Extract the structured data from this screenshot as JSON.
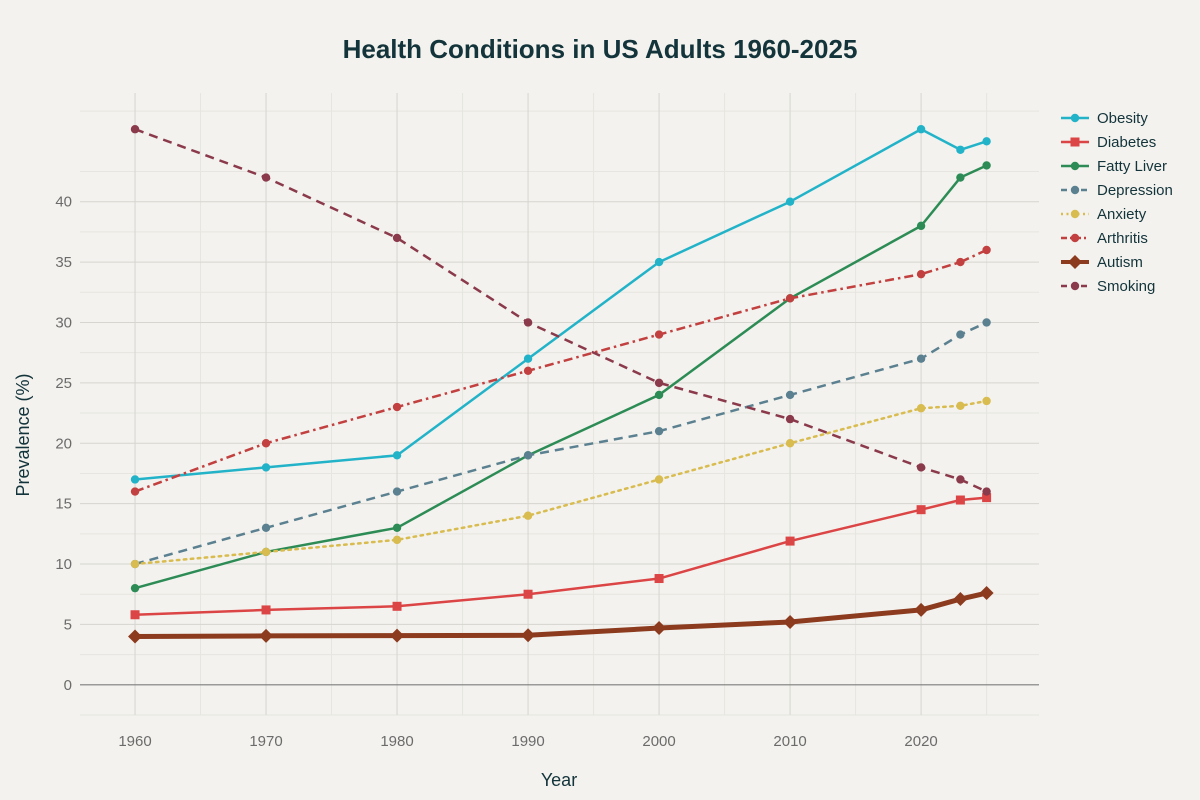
{
  "chart_data": {
    "type": "line",
    "title": "Health Conditions in US Adults 1960-2025",
    "xlabel": "Year",
    "ylabel": "Prevalence (%)",
    "x": [
      1960,
      1970,
      1980,
      1990,
      2000,
      2010,
      2020,
      2023,
      2025
    ],
    "xticks": [
      1960,
      1970,
      1980,
      1990,
      2000,
      2010,
      2020
    ],
    "yticks": [
      0,
      5,
      10,
      15,
      20,
      25,
      30,
      35,
      40
    ],
    "xlim": [
      1955.8,
      2029
    ],
    "ylim": [
      -2.5,
      49
    ],
    "grid": true,
    "legend_position": "top-right",
    "series": [
      {
        "name": "Obesity",
        "color": "#23b3c9",
        "dash": "solid",
        "marker": "circle",
        "width": 2.5,
        "values": [
          17,
          18,
          19,
          27,
          35,
          40,
          46,
          44.3,
          45
        ]
      },
      {
        "name": "Diabetes",
        "color": "#dc4545",
        "dash": "solid",
        "marker": "square",
        "width": 2.5,
        "values": [
          5.8,
          6.2,
          6.5,
          7.5,
          8.8,
          11.9,
          14.5,
          15.3,
          15.5
        ]
      },
      {
        "name": "Fatty Liver",
        "color": "#2d8c55",
        "dash": "solid",
        "marker": "circle",
        "width": 2.5,
        "values": [
          8,
          11,
          13,
          19,
          24,
          32,
          38,
          42,
          43
        ]
      },
      {
        "name": "Depression",
        "color": "#5b8191",
        "dash": "dash",
        "marker": "circle",
        "width": 2.5,
        "values": [
          10,
          13,
          16,
          19,
          21,
          24,
          27,
          29,
          30
        ]
      },
      {
        "name": "Anxiety",
        "color": "#d9bc4f",
        "dash": "dot",
        "marker": "circle",
        "width": 2.5,
        "values": [
          10,
          11,
          12,
          14,
          17,
          20,
          22.9,
          23.1,
          23.5
        ]
      },
      {
        "name": "Arthritis",
        "color": "#c2403f",
        "dash": "dashdot",
        "marker": "circle",
        "width": 2.5,
        "values": [
          16,
          20,
          23,
          26,
          29,
          32,
          34,
          35,
          36
        ]
      },
      {
        "name": "Autism",
        "color": "#8c3b1e",
        "dash": "solid",
        "marker": "diamond",
        "width": 5,
        "values": [
          4.0,
          4.05,
          4.07,
          4.1,
          4.7,
          5.2,
          6.2,
          7.1,
          7.6
        ]
      },
      {
        "name": "Smoking",
        "color": "#8b3a4b",
        "dash": "dash",
        "marker": "circle",
        "width": 2.5,
        "values": [
          46,
          42,
          37,
          30,
          25,
          22,
          18,
          17,
          16
        ]
      }
    ]
  }
}
